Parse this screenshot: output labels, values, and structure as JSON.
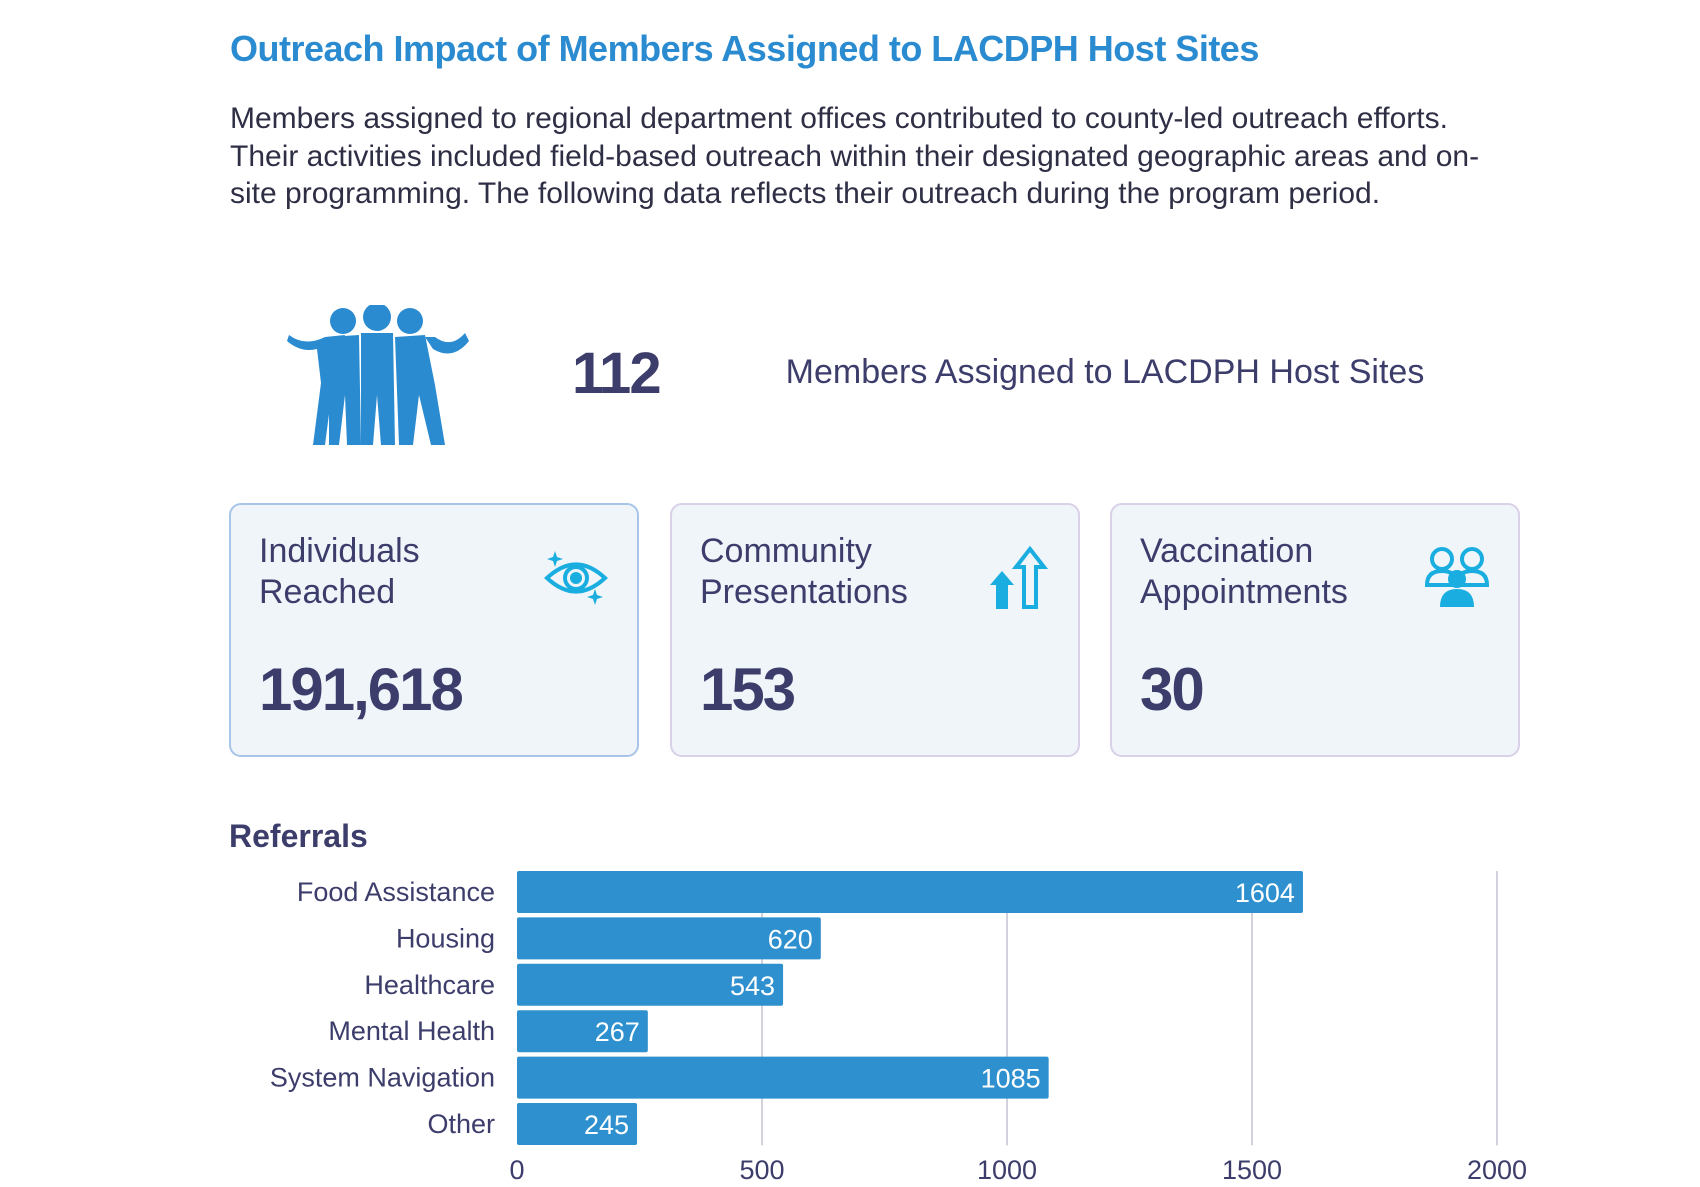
{
  "header": {
    "title": "Outreach Impact of Members Assigned to LACDPH Host Sites",
    "intro": "Members assigned to regional department offices contributed to county-led outreach efforts. Their activities included field-based outreach within their designated geographic areas and on-site programming. The following data reflects their outreach during the program period."
  },
  "members": {
    "count": "112",
    "label": "Members Assigned to LACDPH Host Sites",
    "icon": "people-group-icon"
  },
  "cards": [
    {
      "label": "Individuals Reached",
      "value": "191,618",
      "icon": "eye-sparkle-icon"
    },
    {
      "label": "Community Presentations",
      "value": "153",
      "icon": "up-arrows-icon"
    },
    {
      "label": "Vaccination Appointments",
      "value": "30",
      "icon": "users-group-icon"
    }
  ],
  "colors": {
    "title": "#2b8bd0",
    "bar": "#2e90ce",
    "text": "#3c3d6b",
    "icon": "#1aaee0"
  },
  "chart_data": {
    "type": "bar",
    "orientation": "horizontal",
    "title": "Referrals",
    "categories": [
      "Food Assistance",
      "Housing",
      "Healthcare",
      "Mental Health",
      "System Navigation",
      "Other"
    ],
    "values": [
      1604,
      620,
      543,
      267,
      1085,
      245
    ],
    "xlim": [
      0,
      2000
    ],
    "xticks": [
      0,
      500,
      1000,
      1500,
      2000
    ],
    "grid": true,
    "data_labels": true
  }
}
